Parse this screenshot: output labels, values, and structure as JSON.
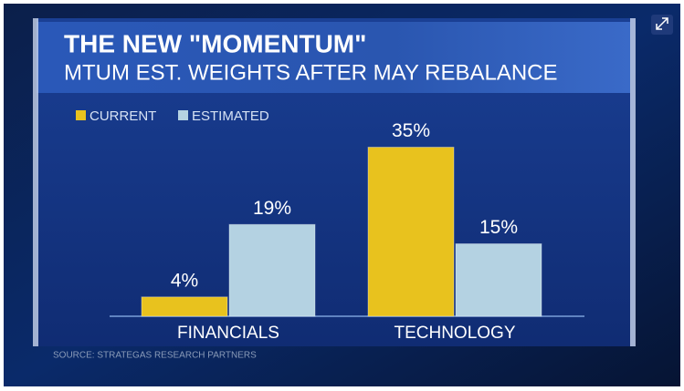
{
  "chart_data": {
    "type": "bar",
    "title": "THE NEW \"MOMENTUM\"",
    "subtitle": "MTUM EST. WEIGHTS AFTER MAY REBALANCE",
    "categories": [
      "FINANCIALS",
      "TECHNOLOGY"
    ],
    "series": [
      {
        "name": "CURRENT",
        "color": "#e8c21e",
        "values": [
          4,
          35
        ],
        "value_labels": [
          "4%",
          "35%"
        ]
      },
      {
        "name": "ESTIMATED",
        "color": "#b4d2e2",
        "values": [
          19,
          15
        ],
        "value_labels": [
          "19%",
          "15%"
        ]
      }
    ],
    "source": "SOURCE: STRATEGAS RESEARCH PARTNERS"
  }
}
